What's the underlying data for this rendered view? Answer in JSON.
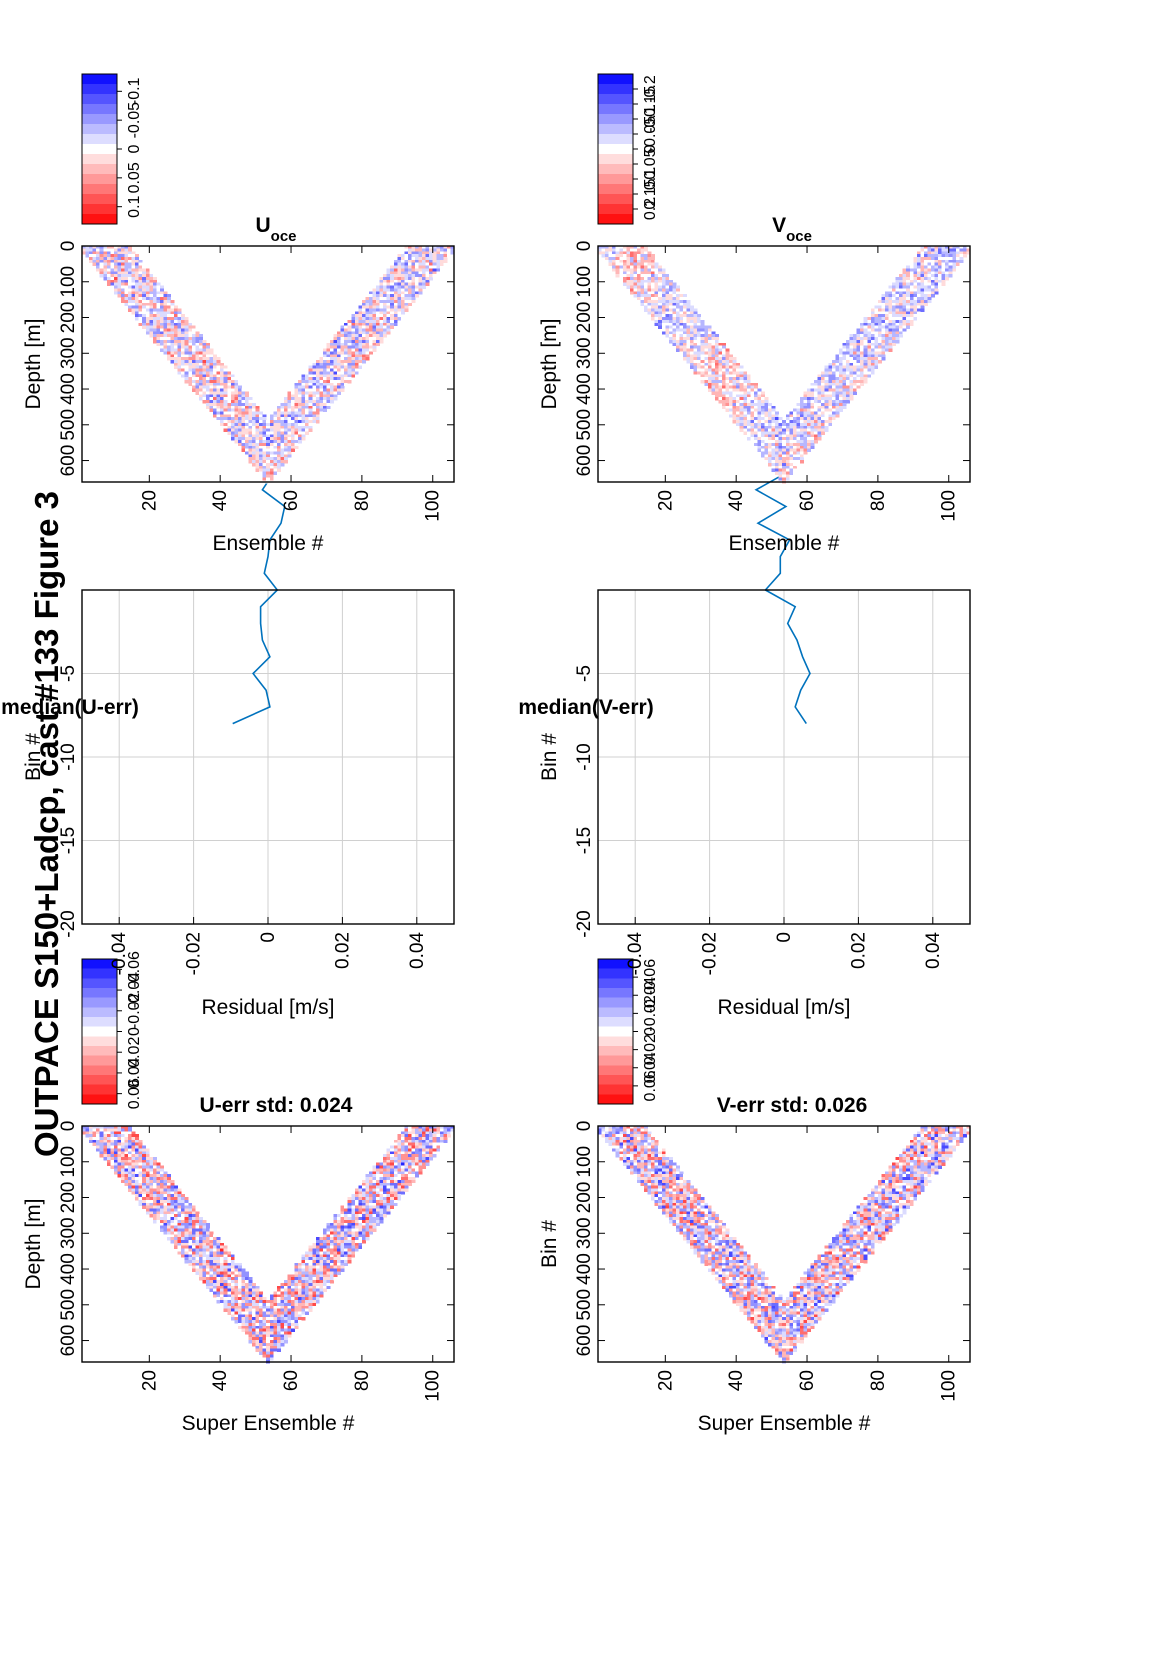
{
  "figure": {
    "title": "OUTPACE S150+Ladcp, cast #133  Figure 3"
  },
  "colors": {
    "red": "#ff0000",
    "white": "#ffffff",
    "blue": "#0000ff",
    "line": "#0072bd",
    "grid": "#d0d0d0"
  },
  "chart_data": [
    {
      "id": "u_err",
      "type": "heatmap",
      "title": "U-err std: 0.024",
      "xlabel": "Super Ensemble #",
      "ylabel": "Depth [m]",
      "xlim": [
        1,
        106
      ],
      "ylim": [
        0,
        660
      ],
      "xticks": [
        "20",
        "40",
        "60",
        "80",
        "100"
      ],
      "yticks": [
        "0",
        "100",
        "200",
        "300",
        "400",
        "500",
        "600"
      ],
      "shape": "V-shaped cast profile, minimum depth at ensembles 1 and 106, maximum ~650 m at ensemble ~53",
      "colorbar": {
        "range": [
          -0.07,
          0.07
        ],
        "ticks": [
          "0.06",
          "0.04",
          "0.02",
          "0",
          "-0.02",
          "-0.04",
          "-0.06"
        ]
      }
    },
    {
      "id": "u_res",
      "type": "line",
      "title": "median(U-err)",
      "xlabel": "Residual [m/s]",
      "ylabel": "Bin #",
      "xlim": [
        -0.05,
        0.05
      ],
      "ylim": [
        -20,
        0
      ],
      "xticks": [
        "-0.04",
        "-0.02",
        "0",
        "0.02",
        "0.04"
      ],
      "yticks": [
        "-5",
        "-10",
        "-15",
        "-20"
      ],
      "grid": true,
      "series": [
        {
          "bin": [
            -8,
            -7,
            -6,
            -5,
            -4,
            -3,
            -2,
            -1,
            0,
            1,
            2,
            3,
            4,
            5,
            6,
            7
          ],
          "x": [
            -0.0095,
            0.0005,
            -0.0005,
            -0.004,
            0.0005,
            -0.0015,
            -0.002,
            -0.002,
            0.0025,
            -0.001,
            0.0,
            0.0005,
            0.0035,
            0.0045,
            -0.0015,
            0.0015
          ]
        }
      ]
    },
    {
      "id": "u_oce",
      "type": "heatmap",
      "title": "U",
      "title_subscript": "oce",
      "xlabel": "Ensemble #",
      "ylabel": "Depth [m]",
      "xlim": [
        1,
        106
      ],
      "ylim": [
        0,
        660
      ],
      "xticks": [
        "20",
        "40",
        "60",
        "80",
        "100"
      ],
      "yticks": [
        "0",
        "100",
        "200",
        "300",
        "400",
        "500",
        "600"
      ],
      "colorbar": {
        "range": [
          -0.13,
          0.13
        ],
        "ticks": [
          "0.1",
          "0.05",
          "0",
          "-0.05",
          "-0.1"
        ]
      }
    },
    {
      "id": "v_err",
      "type": "heatmap",
      "title": "V-err std: 0.026",
      "xlabel": "Super Ensemble #",
      "ylabel": "Bin #",
      "xlim": [
        1,
        106
      ],
      "ylim": [
        0,
        660
      ],
      "xticks": [
        "20",
        "40",
        "60",
        "80",
        "100"
      ],
      "yticks": [
        "0",
        "100",
        "200",
        "300",
        "400",
        "500",
        "600"
      ],
      "colorbar": {
        "range": [
          -0.08,
          0.08
        ],
        "ticks": [
          "0.06",
          "0.04",
          "0.02",
          "0",
          "-0.02",
          "-0.04",
          "-0.06"
        ]
      }
    },
    {
      "id": "v_res",
      "type": "line",
      "title": "median(V-err)",
      "xlabel": "Residual [m/s]",
      "ylabel": "Bin #",
      "xlim": [
        -0.05,
        0.05
      ],
      "ylim": [
        -20,
        0
      ],
      "xticks": [
        "-0.04",
        "-0.02",
        "0",
        "0.02",
        "0.04"
      ],
      "yticks": [
        "-5",
        "-10",
        "-15",
        "-20"
      ],
      "grid": true,
      "series": [
        {
          "bin": [
            -8,
            -7,
            -6,
            -5,
            -4,
            -3,
            -2,
            -1,
            0,
            1,
            2,
            3,
            4,
            5,
            6,
            7
          ],
          "x": [
            0.006,
            0.003,
            0.0045,
            0.007,
            0.005,
            0.0035,
            0.001,
            0.003,
            -0.005,
            -0.001,
            -0.001,
            0.0015,
            -0.007,
            0.0005,
            -0.0075,
            0.0005
          ]
        }
      ]
    },
    {
      "id": "v_oce",
      "type": "heatmap",
      "title": "V",
      "title_subscript": "oce",
      "xlabel": "Ensemble #",
      "ylabel": "Depth [m]",
      "xlim": [
        1,
        106
      ],
      "ylim": [
        0,
        660
      ],
      "xticks": [
        "20",
        "40",
        "60",
        "80",
        "100"
      ],
      "yticks": [
        "0",
        "100",
        "200",
        "300",
        "400",
        "500",
        "600"
      ],
      "colorbar": {
        "range": [
          -0.25,
          0.25
        ],
        "ticks": [
          "0.2",
          "0.15",
          "0.1",
          "0.05",
          "0",
          "-0.05",
          "-0.1",
          "-0.15",
          "-0.2"
        ]
      }
    }
  ]
}
